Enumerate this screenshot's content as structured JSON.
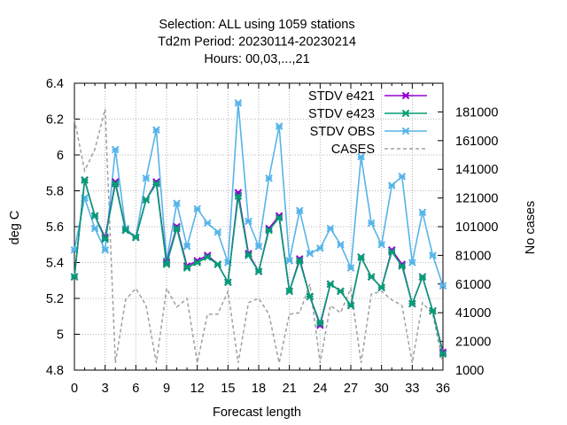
{
  "chart_data": {
    "type": "line",
    "title_lines": [
      "Selection: ALL using  1059 stations",
      "Td2m   Period: 20230114-20230214",
      "Hours:  00,03,...,21"
    ],
    "xlabel": "Forecast length",
    "ylabel": "deg C",
    "y2label": "No cases",
    "xlim": [
      0,
      36
    ],
    "ylim": [
      4.8,
      6.4
    ],
    "y2lim": [
      1000,
      201000
    ],
    "x_ticks": [
      "0",
      "3",
      "6",
      "9",
      "12",
      "15",
      "18",
      "21",
      "24",
      "27",
      "30",
      "33",
      "36"
    ],
    "y_ticks": [
      "4.8",
      "5",
      "5.2",
      "5.4",
      "5.6",
      "5.8",
      "6",
      "6.2",
      "6.4"
    ],
    "y2_ticks": [
      "1000",
      "21000",
      "41000",
      "61000",
      "81000",
      "101000",
      "121000",
      "141000",
      "161000",
      "181000"
    ],
    "grid": true,
    "legend_position": "top-right",
    "x": [
      0,
      1,
      2,
      3,
      4,
      5,
      6,
      7,
      8,
      9,
      10,
      11,
      12,
      13,
      14,
      15,
      16,
      17,
      18,
      19,
      20,
      21,
      22,
      23,
      24,
      25,
      26,
      27,
      28,
      29,
      30,
      31,
      32,
      33,
      34,
      35,
      36
    ],
    "series": [
      {
        "name": "STDV e421",
        "axis": "y1",
        "color": "#9400d3",
        "values": [
          5.32,
          5.86,
          5.66,
          5.54,
          5.85,
          5.58,
          5.54,
          5.75,
          5.85,
          5.4,
          5.6,
          5.38,
          5.41,
          5.44,
          5.39,
          5.29,
          5.79,
          5.45,
          5.35,
          5.59,
          5.66,
          5.24,
          5.42,
          5.21,
          5.05,
          5.28,
          5.24,
          5.16,
          5.43,
          5.32,
          5.26,
          5.47,
          5.39,
          5.17,
          5.32,
          5.13,
          4.9
        ]
      },
      {
        "name": "STDV e423",
        "axis": "y1",
        "color": "#009e73",
        "values": [
          5.32,
          5.86,
          5.66,
          5.53,
          5.84,
          5.58,
          5.54,
          5.75,
          5.84,
          5.39,
          5.59,
          5.37,
          5.4,
          5.43,
          5.39,
          5.29,
          5.77,
          5.44,
          5.35,
          5.58,
          5.65,
          5.24,
          5.41,
          5.21,
          5.06,
          5.28,
          5.24,
          5.16,
          5.43,
          5.32,
          5.26,
          5.46,
          5.38,
          5.17,
          5.32,
          5.13,
          4.89
        ]
      },
      {
        "name": "STDV OBS",
        "axis": "y1",
        "color": "#56b4e9",
        "values": [
          5.47,
          5.76,
          5.59,
          5.47,
          6.03,
          5.59,
          5.54,
          5.87,
          6.14,
          5.41,
          5.73,
          5.49,
          5.7,
          5.62,
          5.57,
          5.4,
          6.29,
          5.63,
          5.49,
          5.87,
          6.16,
          5.41,
          5.69,
          5.45,
          5.48,
          5.59,
          5.5,
          5.37,
          5.99,
          5.62,
          5.5,
          5.83,
          5.88,
          5.4,
          5.68,
          5.44,
          5.27
        ]
      },
      {
        "name": "CASES",
        "axis": "y2",
        "color": "#a0a0a0",
        "dashed": true,
        "values": [
          176000,
          140000,
          155000,
          183000,
          6000,
          50000,
          58000,
          46000,
          6000,
          58000,
          45000,
          51000,
          6000,
          40000,
          40000,
          56000,
          6000,
          48000,
          51000,
          40000,
          6000,
          40000,
          41000,
          61000,
          6000,
          46000,
          41000,
          58000,
          6000,
          54000,
          56000,
          50000,
          46000,
          6000,
          48000,
          40000,
          6000
        ]
      }
    ]
  }
}
